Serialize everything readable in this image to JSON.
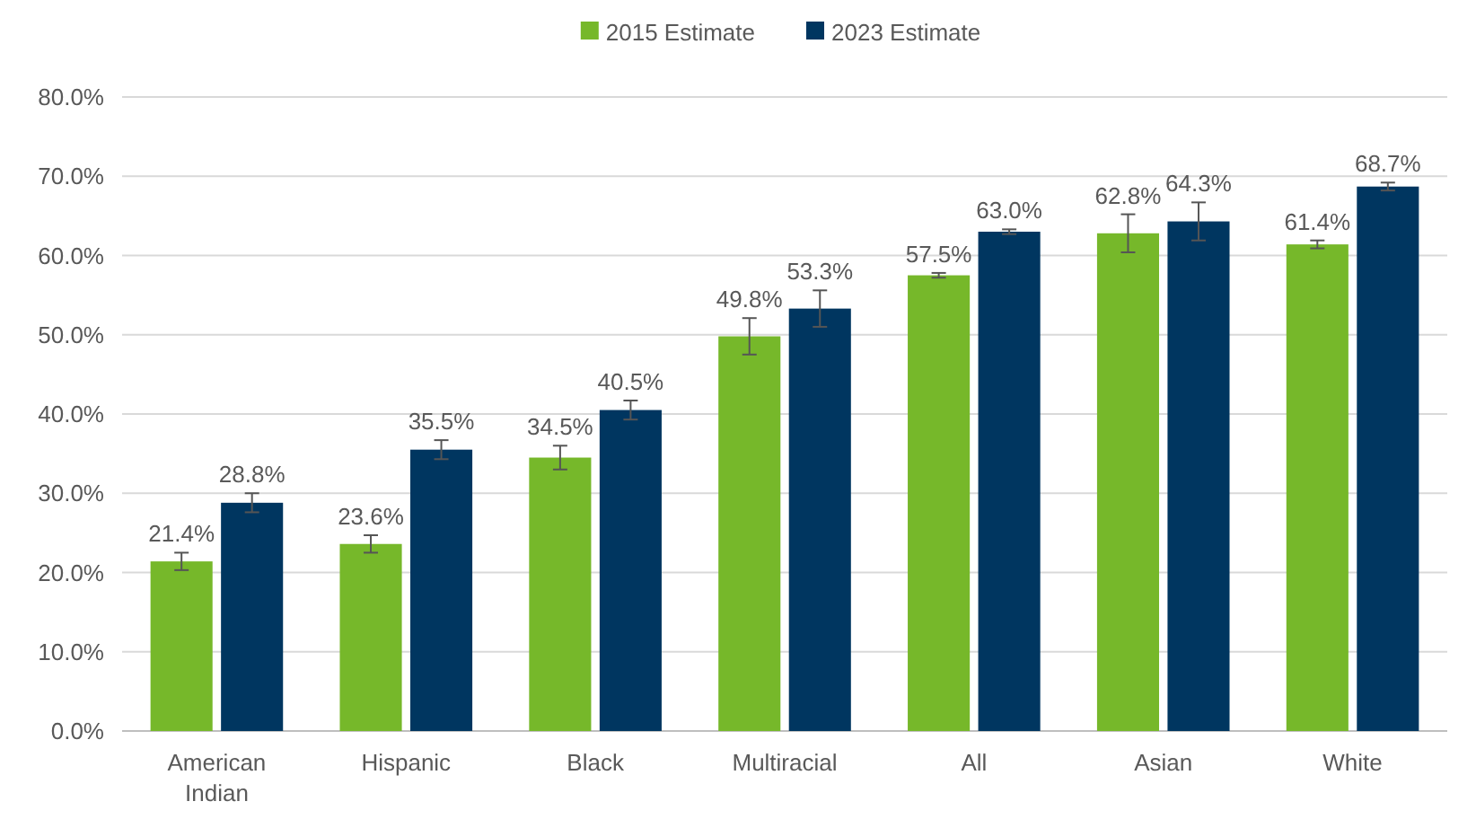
{
  "chart_data": {
    "type": "bar",
    "categories": [
      "American Indian",
      "Hispanic",
      "Black",
      "Multiracial",
      "All",
      "Asian",
      "White"
    ],
    "series": [
      {
        "name": "2015 Estimate",
        "color": "#76b82a",
        "values": [
          21.4,
          23.6,
          34.5,
          49.8,
          57.5,
          62.8,
          61.4
        ],
        "errors": [
          1.1,
          1.1,
          1.5,
          2.3,
          0.3,
          2.4,
          0.5
        ],
        "value_labels": [
          "21.4%",
          "23.6%",
          "34.5%",
          "49.8%",
          "57.5%",
          "62.8%",
          "61.4%"
        ]
      },
      {
        "name": "2023 Estimate",
        "color": "#003660",
        "values": [
          28.8,
          35.5,
          40.5,
          53.3,
          63.0,
          64.3,
          68.7
        ],
        "errors": [
          1.2,
          1.2,
          1.2,
          2.3,
          0.3,
          2.4,
          0.5
        ],
        "value_labels": [
          "28.8%",
          "35.5%",
          "40.5%",
          "53.3%",
          "63.0%",
          "64.3%",
          "68.7%"
        ]
      }
    ],
    "ylim": [
      0,
      80
    ],
    "yticks": [
      {
        "value": 0,
        "label": "0.0%"
      },
      {
        "value": 10,
        "label": "10.0%"
      },
      {
        "value": 20,
        "label": "20.0%"
      },
      {
        "value": 30,
        "label": "30.0%"
      },
      {
        "value": 40,
        "label": "40.0%"
      },
      {
        "value": 50,
        "label": "50.0%"
      },
      {
        "value": 60,
        "label": "60.0%"
      },
      {
        "value": 70,
        "label": "70.0%"
      },
      {
        "value": 80,
        "label": "80.0%"
      }
    ],
    "grid": "y",
    "legend": "top"
  }
}
